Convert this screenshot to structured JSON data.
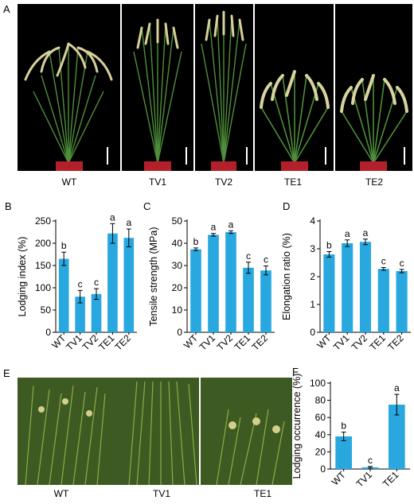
{
  "panels": {
    "A": {
      "letter": "A",
      "labels": [
        "WT",
        "TV1",
        "TV2",
        "TE1",
        "TE2"
      ]
    },
    "E": {
      "letter": "E",
      "labels": [
        "WT",
        "TV1",
        "TE1"
      ]
    }
  },
  "colors": {
    "bar": "#29a8e0",
    "axis": "#000000"
  },
  "chart_data": [
    {
      "panel": "B",
      "type": "bar",
      "categories": [
        "WT",
        "TV1",
        "TV2",
        "TE1",
        "TE2"
      ],
      "values": [
        165,
        80,
        86,
        222,
        212
      ],
      "errors": [
        15,
        14,
        12,
        22,
        20
      ],
      "letters": [
        "b",
        "c",
        "c",
        "a",
        "a"
      ],
      "ylabel": "Lodging index (%)",
      "ylim": [
        0,
        250
      ],
      "yticks": [
        0,
        50,
        100,
        150,
        200,
        250
      ]
    },
    {
      "panel": "C",
      "type": "bar",
      "categories": [
        "WT",
        "TV1",
        "TV2",
        "TE1",
        "TE2"
      ],
      "values": [
        37.3,
        43.8,
        45.0,
        29.0,
        27.8
      ],
      "errors": [
        0.6,
        0.6,
        0.6,
        2.5,
        2.0
      ],
      "letters": [
        "b",
        "a",
        "a",
        "c",
        "c"
      ],
      "ylabel": "Tensile strength (MPa)",
      "ylim": [
        0,
        50
      ],
      "yticks": [
        0,
        10,
        20,
        30,
        40,
        50
      ]
    },
    {
      "panel": "D",
      "type": "bar",
      "categories": [
        "WT",
        "TV1",
        "TV2",
        "TE1",
        "TE2"
      ],
      "values": [
        2.8,
        3.2,
        3.25,
        2.28,
        2.2
      ],
      "errors": [
        0.1,
        0.12,
        0.1,
        0.05,
        0.06
      ],
      "letters": [
        "b",
        "a",
        "a",
        "c",
        "c"
      ],
      "ylabel": "Elongation ratio (%)",
      "ylim": [
        0,
        4
      ],
      "yticks": [
        0,
        1,
        2,
        3,
        4
      ]
    },
    {
      "panel": "F",
      "type": "bar",
      "categories": [
        "WT",
        "TV1",
        "TE1"
      ],
      "values": [
        38,
        2,
        75
      ],
      "errors": [
        5,
        1,
        12
      ],
      "letters": [
        "b",
        "c",
        "a"
      ],
      "ylabel": "Lodging occurrence (%)",
      "ylim": [
        0,
        100
      ],
      "yticks": [
        0,
        20,
        40,
        60,
        80,
        100
      ]
    }
  ]
}
